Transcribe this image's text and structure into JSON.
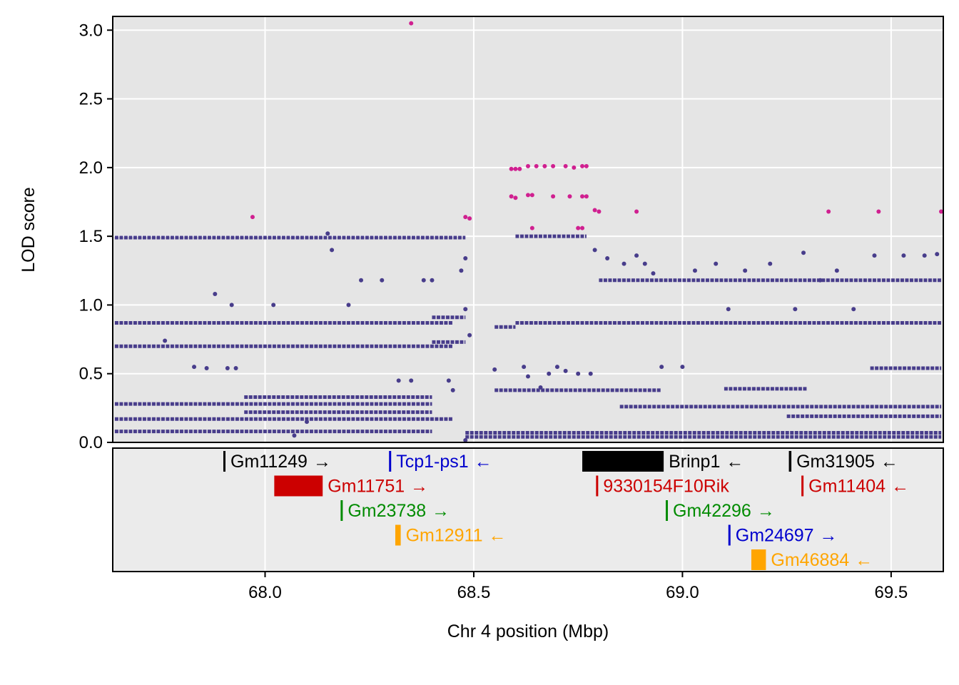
{
  "chart_data": {
    "type": "scatter",
    "xlabel": "Chr 4 position (Mbp)",
    "ylabel": "LOD score",
    "xlim": [
      67.635,
      69.625
    ],
    "ylim": [
      0.0,
      3.1
    ],
    "x_ticks": [
      "68.0",
      "68.5",
      "69.0",
      "69.5"
    ],
    "y_ticks": [
      "0.0",
      "0.5",
      "1.0",
      "1.5",
      "2.0",
      "2.5",
      "3.0"
    ],
    "grid": true,
    "colors": {
      "snp": "#483D8B",
      "top_snp": "#D02090",
      "panel_bg": "#E5E5E5",
      "gene_panel_bg": "#EBEBEB",
      "grid": "#FFFFFF"
    },
    "series": [
      {
        "color": "#483D8B",
        "bands": [
          {
            "x": [
              67.64,
              68.48
            ],
            "y": 1.49
          },
          {
            "x": [
              67.64,
              68.45
            ],
            "y": 0.87
          },
          {
            "x": [
              67.64,
              68.45
            ],
            "y": 0.7
          },
          {
            "x": [
              67.64,
              68.45
            ],
            "y": 0.17
          },
          {
            "x": [
              67.64,
              68.4
            ],
            "y": 0.28
          },
          {
            "x": [
              67.64,
              68.4
            ],
            "y": 0.08
          },
          {
            "x": [
              67.95,
              68.4
            ],
            "y": 0.33
          },
          {
            "x": [
              67.95,
              68.4
            ],
            "y": 0.22
          },
          {
            "x": [
              68.4,
              68.48
            ],
            "y": 0.91
          },
          {
            "x": [
              68.4,
              68.48
            ],
            "y": 0.73
          },
          {
            "x": [
              68.55,
              68.6
            ],
            "y": 0.84
          },
          {
            "x": [
              68.6,
              69.62
            ],
            "y": 0.87
          },
          {
            "x": [
              68.48,
              69.62
            ],
            "y": 0.07
          },
          {
            "x": [
              68.48,
              69.62
            ],
            "y": 0.04
          },
          {
            "x": [
              68.55,
              68.95
            ],
            "y": 0.38
          },
          {
            "x": [
              68.6,
              68.77
            ],
            "y": 1.5
          },
          {
            "x": [
              68.8,
              69.62
            ],
            "y": 1.18
          },
          {
            "x": [
              69.1,
              69.3
            ],
            "y": 0.39
          },
          {
            "x": [
              68.85,
              69.62
            ],
            "y": 0.26
          },
          {
            "x": [
              69.25,
              69.62
            ],
            "y": 0.19
          },
          {
            "x": [
              69.45,
              69.62
            ],
            "y": 0.54
          }
        ],
        "points": [
          [
            67.76,
            0.74
          ],
          [
            67.83,
            0.55
          ],
          [
            67.86,
            0.54
          ],
          [
            67.88,
            1.08
          ],
          [
            67.91,
            0.54
          ],
          [
            67.93,
            0.54
          ],
          [
            67.92,
            1.0
          ],
          [
            68.02,
            1.0
          ],
          [
            68.07,
            0.05
          ],
          [
            68.1,
            0.15
          ],
          [
            68.15,
            1.52
          ],
          [
            68.16,
            1.4
          ],
          [
            68.2,
            1.0
          ],
          [
            68.23,
            1.18
          ],
          [
            68.28,
            1.18
          ],
          [
            68.32,
            0.45
          ],
          [
            68.35,
            0.45
          ],
          [
            68.38,
            1.18
          ],
          [
            68.4,
            1.18
          ],
          [
            68.44,
            0.45
          ],
          [
            68.45,
            0.38
          ],
          [
            68.47,
            1.25
          ],
          [
            68.48,
            1.34
          ],
          [
            68.49,
            0.78
          ],
          [
            68.48,
            0.97
          ],
          [
            68.48,
            0.0
          ],
          [
            68.55,
            0.53
          ],
          [
            68.62,
            0.55
          ],
          [
            68.63,
            0.48
          ],
          [
            68.66,
            0.4
          ],
          [
            68.68,
            0.5
          ],
          [
            68.7,
            0.55
          ],
          [
            68.72,
            0.52
          ],
          [
            68.75,
            0.5
          ],
          [
            68.78,
            0.5
          ],
          [
            68.79,
            1.4
          ],
          [
            68.82,
            1.34
          ],
          [
            68.86,
            1.3
          ],
          [
            68.89,
            1.36
          ],
          [
            68.91,
            1.3
          ],
          [
            68.93,
            1.23
          ],
          [
            68.95,
            0.55
          ],
          [
            69.0,
            0.55
          ],
          [
            69.03,
            1.25
          ],
          [
            69.08,
            1.3
          ],
          [
            69.11,
            0.97
          ],
          [
            69.15,
            1.25
          ],
          [
            69.21,
            1.3
          ],
          [
            69.27,
            0.97
          ],
          [
            69.29,
            1.38
          ],
          [
            69.33,
            1.18
          ],
          [
            69.37,
            1.25
          ],
          [
            69.41,
            0.97
          ],
          [
            69.46,
            1.36
          ],
          [
            69.53,
            1.36
          ],
          [
            69.58,
            1.36
          ],
          [
            69.61,
            1.37
          ]
        ]
      },
      {
        "color": "#D02090",
        "points": [
          [
            67.97,
            1.64
          ],
          [
            68.35,
            3.05
          ],
          [
            68.48,
            1.64
          ],
          [
            68.49,
            1.63
          ],
          [
            68.59,
            1.99
          ],
          [
            68.6,
            1.99
          ],
          [
            68.61,
            1.99
          ],
          [
            68.63,
            2.01
          ],
          [
            68.65,
            2.01
          ],
          [
            68.67,
            2.01
          ],
          [
            68.69,
            2.01
          ],
          [
            68.72,
            2.01
          ],
          [
            68.74,
            2.0
          ],
          [
            68.76,
            2.01
          ],
          [
            68.77,
            2.01
          ],
          [
            68.59,
            1.79
          ],
          [
            68.6,
            1.78
          ],
          [
            68.63,
            1.8
          ],
          [
            68.64,
            1.8
          ],
          [
            68.69,
            1.79
          ],
          [
            68.73,
            1.79
          ],
          [
            68.76,
            1.79
          ],
          [
            68.77,
            1.79
          ],
          [
            68.64,
            1.56
          ],
          [
            68.75,
            1.56
          ],
          [
            68.76,
            1.56
          ],
          [
            68.79,
            1.69
          ],
          [
            68.8,
            1.68
          ],
          [
            68.89,
            1.68
          ],
          [
            69.35,
            1.68
          ],
          [
            69.47,
            1.68
          ],
          [
            69.62,
            1.68
          ]
        ]
      }
    ],
    "genes": [
      {
        "name": "Gm11249",
        "arrow": "→",
        "color": "#000000",
        "start": 67.9,
        "end": 67.902,
        "row": 0
      },
      {
        "name": "Tcp1-ps1",
        "arrow": "←",
        "color": "#0000CD",
        "start": 68.297,
        "end": 68.299,
        "row": 0
      },
      {
        "name": "Brinp1",
        "arrow": "←",
        "color": "#000000",
        "start": 68.76,
        "end": 68.955,
        "row": 0
      },
      {
        "name": "Gm31905",
        "arrow": "←",
        "color": "#000000",
        "start": 69.255,
        "end": 69.261,
        "row": 0
      },
      {
        "name": "Gm11751",
        "arrow": "→",
        "color": "#CC0000",
        "start": 68.022,
        "end": 68.138,
        "row": 1
      },
      {
        "name": "9330154F10Rik",
        "arrow": "",
        "color": "#CC0000",
        "start": 68.793,
        "end": 68.795,
        "row": 1
      },
      {
        "name": "Gm11404",
        "arrow": "←",
        "color": "#CC0000",
        "start": 69.285,
        "end": 69.29,
        "row": 1
      },
      {
        "name": "Gm23738",
        "arrow": "→",
        "color": "#008B00",
        "start": 68.181,
        "end": 68.183,
        "row": 2
      },
      {
        "name": "Gm42296",
        "arrow": "→",
        "color": "#008B00",
        "start": 68.96,
        "end": 68.963,
        "row": 2
      },
      {
        "name": "Gm12911",
        "arrow": "←",
        "color": "#FFA500",
        "start": 68.312,
        "end": 68.325,
        "row": 3
      },
      {
        "name": "Gm24697",
        "arrow": "→",
        "color": "#0000CD",
        "start": 69.11,
        "end": 69.112,
        "row": 3
      },
      {
        "name": "Gm46884",
        "arrow": "←",
        "color": "#FFA500",
        "start": 69.165,
        "end": 69.2,
        "row": 4
      }
    ]
  }
}
